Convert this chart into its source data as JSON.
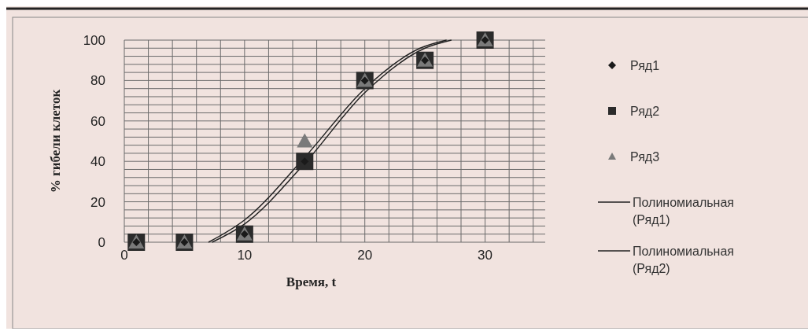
{
  "chart_data": {
    "type": "scatter",
    "xlabel": "Время, t",
    "ylabel": "% гибели клеток",
    "xlim": [
      0,
      35
    ],
    "ylim": [
      0,
      100
    ],
    "xticks": [
      0,
      {
        "value": 2,
        "label": null
      },
      {
        "value": 4,
        "label": null
      },
      {
        "value": 6,
        "label": null
      },
      {
        "value": 8,
        "label": null
      },
      10,
      {
        "value": 12,
        "label": null
      },
      {
        "value": 14,
        "label": null
      },
      {
        "value": 16,
        "label": null
      },
      {
        "value": 18,
        "label": null
      },
      20,
      {
        "value": 22,
        "label": null
      },
      {
        "value": 24,
        "label": null
      },
      {
        "value": 26,
        "label": null
      },
      {
        "value": 28,
        "label": null
      },
      30,
      {
        "value": 32,
        "label": null
      },
      {
        "value": 34,
        "label": null
      }
    ],
    "yticks": [
      0,
      {
        "value": 4,
        "label": null
      },
      {
        "value": 8,
        "label": null
      },
      {
        "value": 12,
        "label": null
      },
      {
        "value": 16,
        "label": null
      },
      20,
      {
        "value": 24,
        "label": null
      },
      {
        "value": 28,
        "label": null
      },
      {
        "value": 32,
        "label": null
      },
      {
        "value": 36,
        "label": null
      },
      40,
      {
        "value": 44,
        "label": null
      },
      {
        "value": 48,
        "label": null
      },
      {
        "value": 52,
        "label": null
      },
      {
        "value": 56,
        "label": null
      },
      60,
      {
        "value": 64,
        "label": null
      },
      {
        "value": 68,
        "label": null
      },
      {
        "value": 72,
        "label": null
      },
      {
        "value": 76,
        "label": null
      },
      80,
      {
        "value": 84,
        "label": null
      },
      {
        "value": 88,
        "label": null
      },
      {
        "value": 92,
        "label": null
      },
      {
        "value": 96,
        "label": null
      },
      100
    ],
    "grid": true,
    "legend": "right",
    "x": [
      1,
      5,
      10,
      15,
      20,
      25,
      30
    ],
    "series": [
      {
        "name": "Ряд1",
        "color": "#1a1a1a",
        "marker": "diamond",
        "values": [
          0,
          0,
          4,
          40,
          80,
          90,
          100
        ]
      },
      {
        "name": "Ряд2",
        "color": "#2b2b2b",
        "marker": "square",
        "values": [
          0,
          0,
          4,
          40,
          80,
          90,
          100
        ]
      },
      {
        "name": "Ряд3",
        "color": "#7a7a7a",
        "marker": "triangle",
        "values": [
          0,
          0,
          4,
          50,
          80,
          90,
          100
        ]
      },
      {
        "name": "Полиномиальная (Ряд1)",
        "type": "line",
        "color": "#222222",
        "marker": "none",
        "x": [
          7,
          10,
          15,
          20,
          24.6,
          26.8
        ],
        "values": [
          0,
          11,
          42,
          76,
          96,
          100
        ]
      },
      {
        "name": "Полиномиальная (Ряд2)",
        "type": "line",
        "color": "#222222",
        "marker": "none",
        "x": [
          7.3,
          10,
          15,
          20,
          25,
          27.2
        ],
        "values": [
          0,
          9,
          39,
          74,
          96,
          100
        ]
      }
    ]
  }
}
